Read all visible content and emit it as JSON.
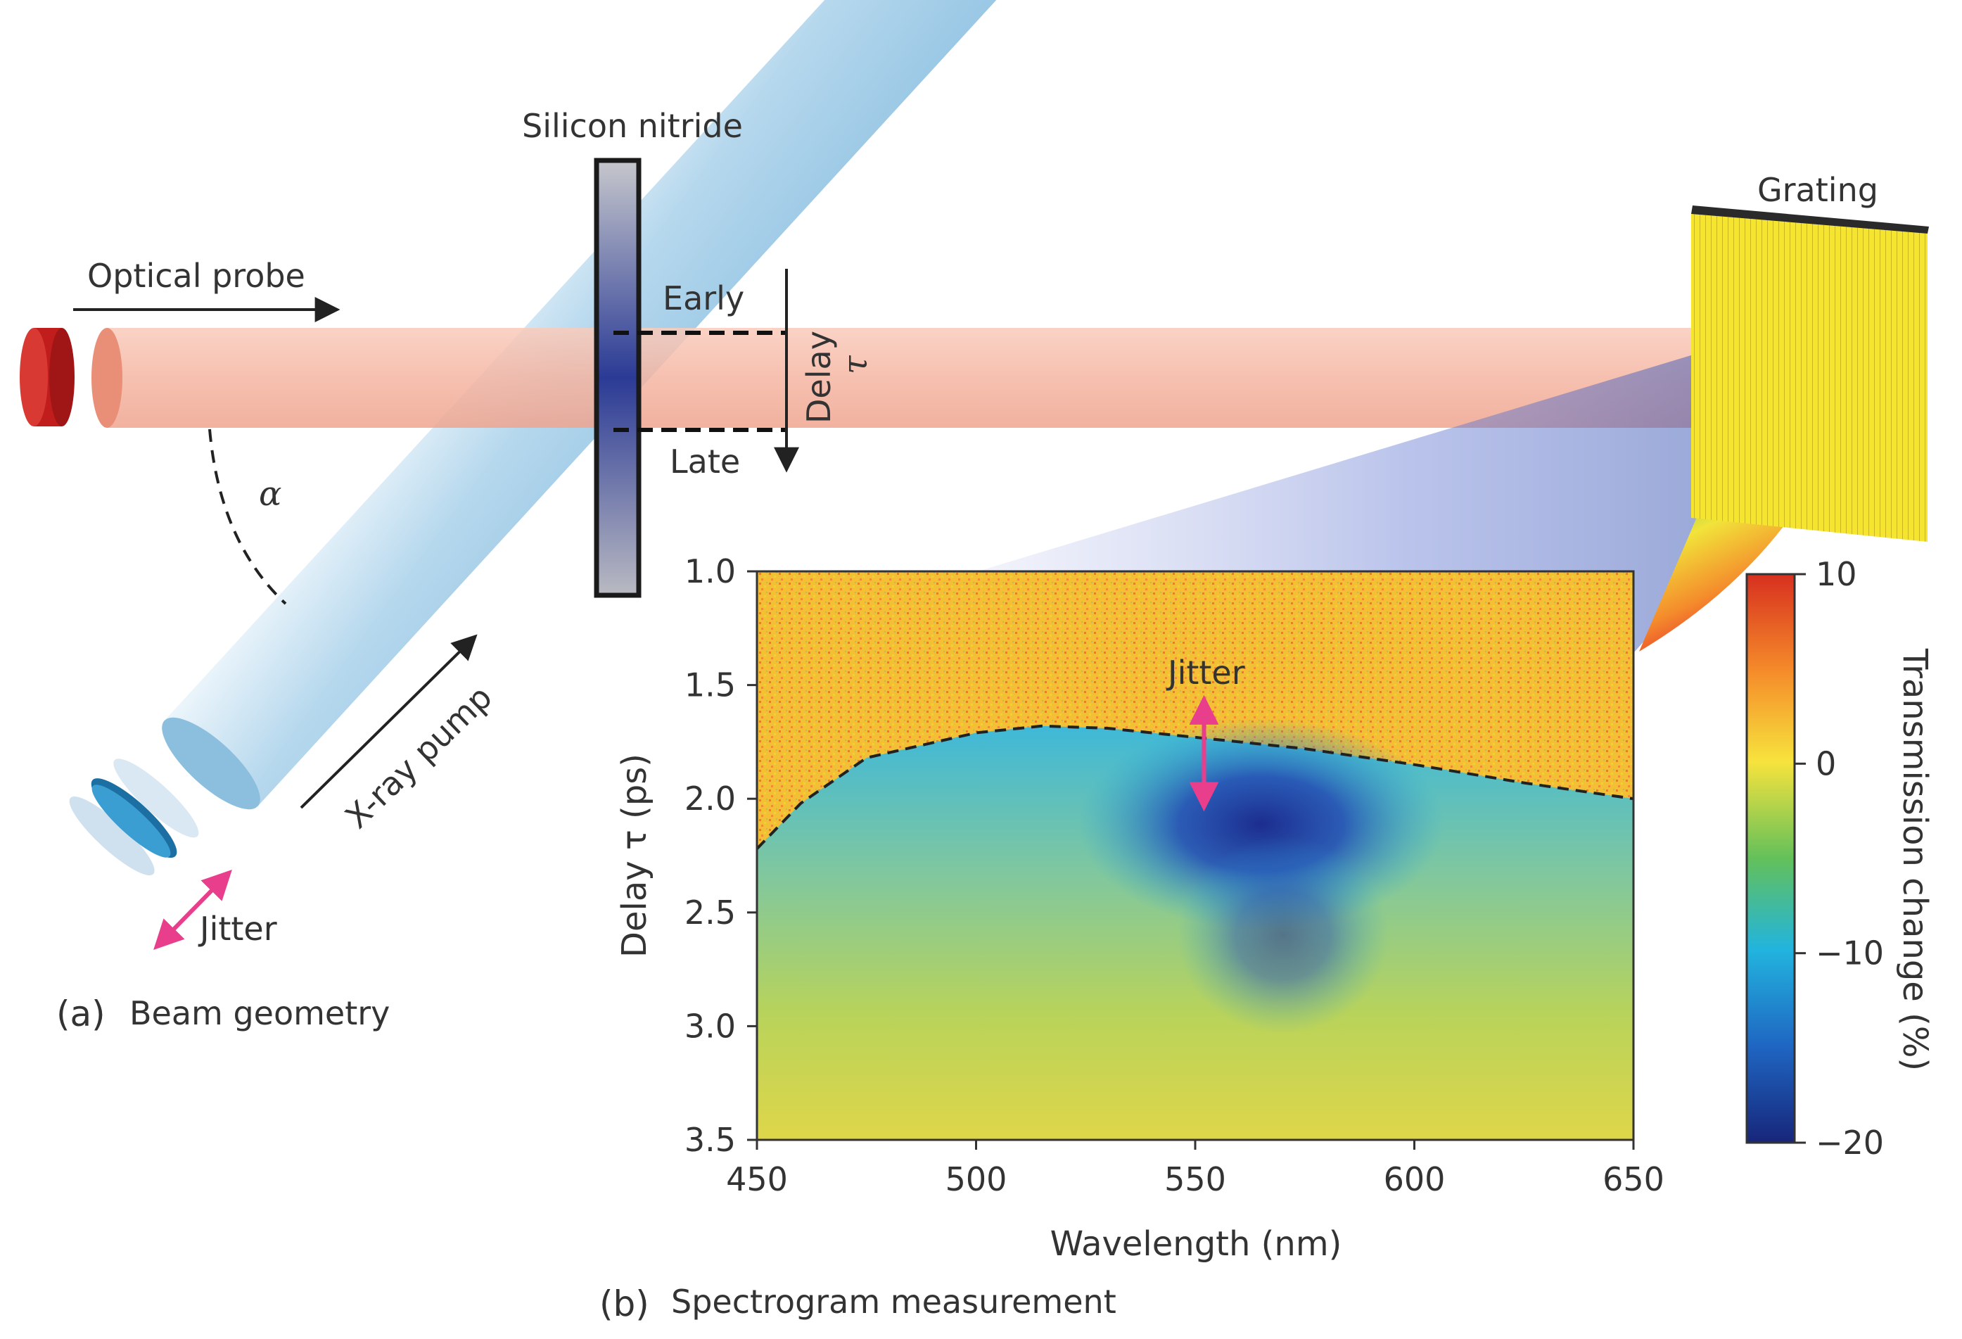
{
  "panel_a": {
    "letter": "(a)",
    "caption": "Beam geometry",
    "labels": {
      "optical_probe": "Optical probe",
      "xray_pump": "X-ray pump",
      "silicon_nitride": "Silicon nitride",
      "grating": "Grating",
      "early": "Early",
      "late": "Late",
      "delay": "Delay",
      "tau": "τ",
      "alpha": "α",
      "jitter": "Jitter"
    }
  },
  "panel_b": {
    "letter": "(b)",
    "caption": "Spectrogram measurement",
    "jitter_label": "Jitter"
  },
  "colors": {
    "probe_beam": "#f6b9a7",
    "pump_beam": "#9fcbe6",
    "jitter_arrow": "#e83e8c",
    "grating": "#f5e02a",
    "sample_dark": "#2d3a8a"
  },
  "chart_data": {
    "type": "heatmap",
    "title": "",
    "xlabel": "Wavelength (nm)",
    "ylabel": "Delay τ (ps)",
    "xlim": [
      450,
      650
    ],
    "ylim": [
      3.5,
      1.0
    ],
    "x_ticks": [
      "450",
      "500",
      "550",
      "600",
      "650"
    ],
    "y_ticks": [
      "1.0",
      "1.5",
      "2.0",
      "2.5",
      "3.0",
      "3.5"
    ],
    "colorbar": {
      "label": "Transmission change (%)",
      "range": [
        -20,
        10
      ],
      "ticks": [
        "10",
        "0",
        "−10",
        "−20"
      ]
    },
    "regions": [
      {
        "name": "before arrival (above dashed line)",
        "value_percent": 3
      },
      {
        "name": "dark minimum",
        "wavelength_nm": 565,
        "delay_ps": 2.05,
        "value_percent": -18
      },
      {
        "name": "late-time background",
        "delay_ps": 3.2,
        "value_percent": -2
      }
    ],
    "arrival_curve": {
      "style": "dashed",
      "points": [
        {
          "x": 450,
          "y": 2.22
        },
        {
          "x": 460,
          "y": 2.02
        },
        {
          "x": 475,
          "y": 1.82
        },
        {
          "x": 500,
          "y": 1.71
        },
        {
          "x": 515,
          "y": 1.68
        },
        {
          "x": 530,
          "y": 1.69
        },
        {
          "x": 550,
          "y": 1.73
        },
        {
          "x": 575,
          "y": 1.78
        },
        {
          "x": 600,
          "y": 1.85
        },
        {
          "x": 625,
          "y": 1.93
        },
        {
          "x": 650,
          "y": 2.0
        }
      ]
    },
    "jitter_marker": {
      "wavelength_nm": 552,
      "delay_from_ps": 1.57,
      "delay_to_ps": 2.03
    }
  }
}
